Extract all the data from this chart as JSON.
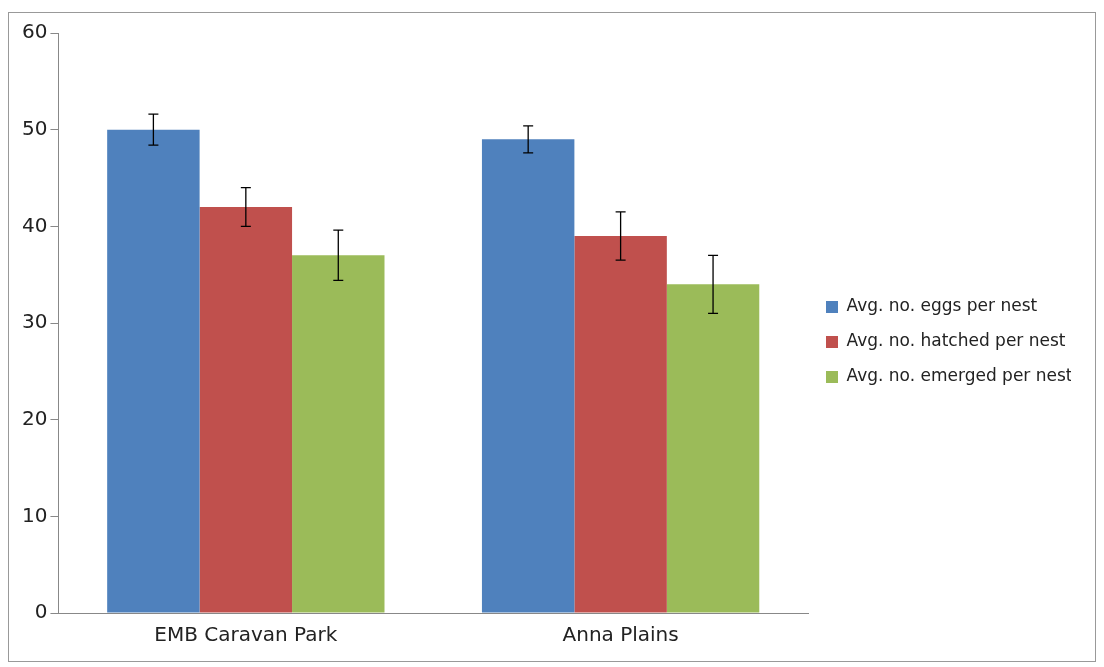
{
  "chart_data": {
    "type": "bar",
    "categories": [
      "EMB Caravan Park",
      "Anna Plains"
    ],
    "series": [
      {
        "name": "Avg. no. eggs per nest",
        "color": "#4f81bd",
        "values": [
          50,
          49
        ],
        "errors": [
          1.6,
          1.4
        ]
      },
      {
        "name": "Avg. no. hatched per nest",
        "color": "#c0504d",
        "values": [
          42,
          39
        ],
        "errors": [
          2,
          2.5
        ]
      },
      {
        "name": "Avg. no. emerged per nest",
        "color": "#9bbb59",
        "values": [
          37,
          34
        ],
        "errors": [
          2.6,
          3
        ]
      }
    ],
    "ylim": [
      0,
      60
    ],
    "yticks": [
      0,
      10,
      20,
      30,
      40,
      50,
      60
    ],
    "grid": false,
    "legend": "right"
  }
}
